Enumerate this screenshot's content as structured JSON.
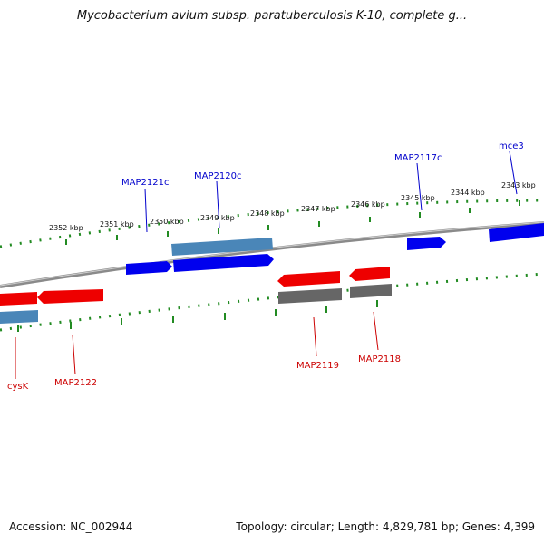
{
  "title": "Mycobacterium avium subsp. paratuberculosis K-10, complete g...",
  "footer": {
    "accession": "Accession: NC_002944",
    "stats": "Topology: circular; Length: 4,829,781 bp; Genes: 4,399"
  },
  "colors": {
    "forward_gene": "#0000ee",
    "reverse_gene": "#ee0000",
    "forward_cds": "#4a86b8",
    "reverse_cds": "#666666",
    "backbone": "#888888",
    "ticks": "#228b22"
  },
  "tick_labels": [
    {
      "text": "2352 kbp"
    },
    {
      "text": "2351 kbp"
    },
    {
      "text": "2350 kbp"
    },
    {
      "text": "2349 kbp"
    },
    {
      "text": "2348 kbp"
    },
    {
      "text": "2347 kbp"
    },
    {
      "text": "2346 kbp"
    },
    {
      "text": "2345 kbp"
    },
    {
      "text": "2344 kbp"
    },
    {
      "text": "2343 kbp"
    }
  ],
  "gene_labels": [
    {
      "text": "MAP2121c",
      "strand": "forward"
    },
    {
      "text": "MAP2120c",
      "strand": "forward"
    },
    {
      "text": "MAP2117c",
      "strand": "forward"
    },
    {
      "text": "mce3",
      "strand": "forward"
    },
    {
      "text": "cysK",
      "strand": "reverse"
    },
    {
      "text": "MAP2122",
      "strand": "reverse"
    },
    {
      "text": "MAP2119",
      "strand": "reverse"
    },
    {
      "text": "MAP2118",
      "strand": "reverse"
    }
  ]
}
